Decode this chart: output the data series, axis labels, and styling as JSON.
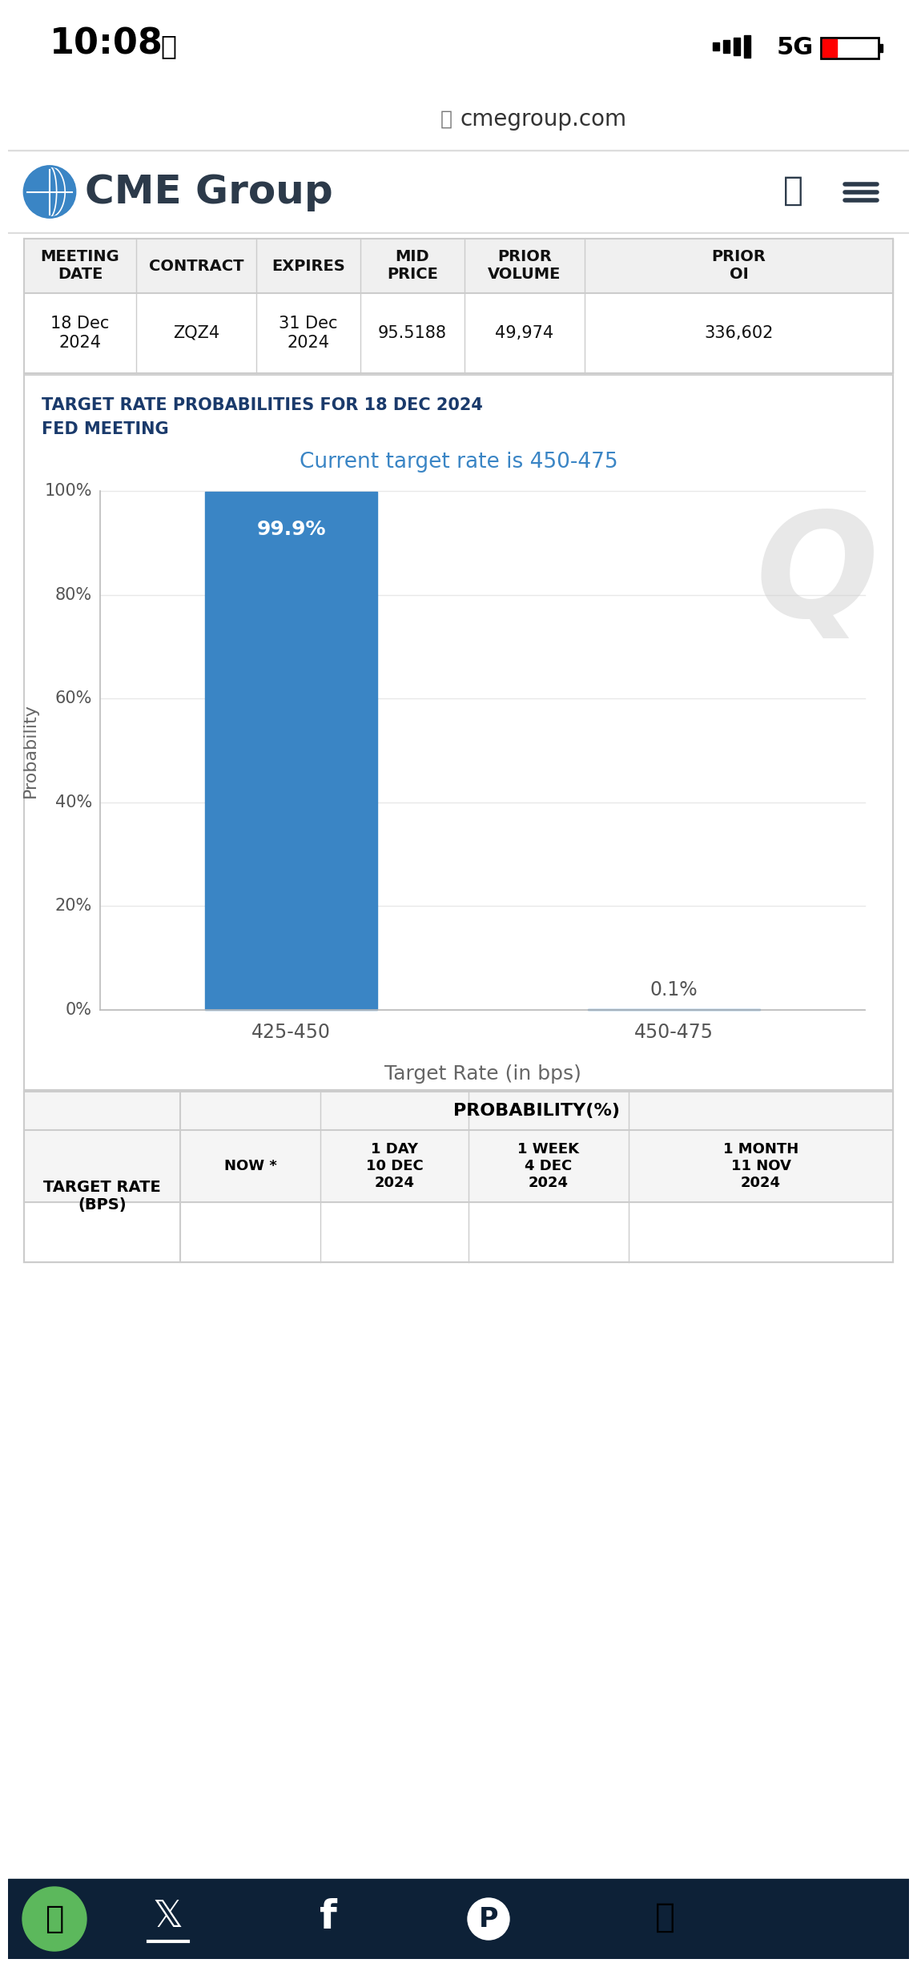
{
  "time": "10:08",
  "url": "cmegroup.com",
  "table_headers": [
    "MEETING\nDATE",
    "CONTRACT",
    "EXPIRES",
    "MID\nPRICE",
    "PRIOR\nVOLUME",
    "PRIOR\nOI"
  ],
  "table_row": [
    "18 Dec\n2024",
    "ZQZ4",
    "31 Dec\n2024",
    "95.5188",
    "49,974",
    "336,602"
  ],
  "chart_title_line1": "TARGET RATE PROBABILITIES FOR 18 DEC 2024",
  "chart_title_line2": "FED MEETING",
  "chart_subtitle": "Current target rate is 450-475",
  "bar_categories": [
    "425-450",
    "450-475"
  ],
  "bar_values": [
    99.9,
    0.1
  ],
  "bar_label_99": "99.9%",
  "bar_label_01": "0.1%",
  "ylabel": "Probability",
  "xlabel": "Target Rate (in bps)",
  "yticks": [
    0,
    20,
    40,
    60,
    80,
    100
  ],
  "ytick_labels": [
    "0%",
    "20%",
    "40%",
    "60%",
    "80%",
    "100%"
  ],
  "bottom_table_col1": "TARGET RATE\n(BPS)",
  "bottom_table_col2_header": "PROBABILITY(%)",
  "bottom_table_subcols": [
    "NOW *",
    "1 DAY\n10 DEC\n2024",
    "1 WEEK\n4 DEC\n2024",
    "1 MONTH\n11 NOV\n2024"
  ],
  "bg_color": "#ffffff",
  "border_color": "#cccccc",
  "title_color": "#1a3a6b",
  "subtitle_color": "#3a85c5",
  "bar_blue": "#3a85c5",
  "nav_bar_color": "#0d2137",
  "cookie_green": "#5cb85c",
  "signal_bars_color": "#000000"
}
